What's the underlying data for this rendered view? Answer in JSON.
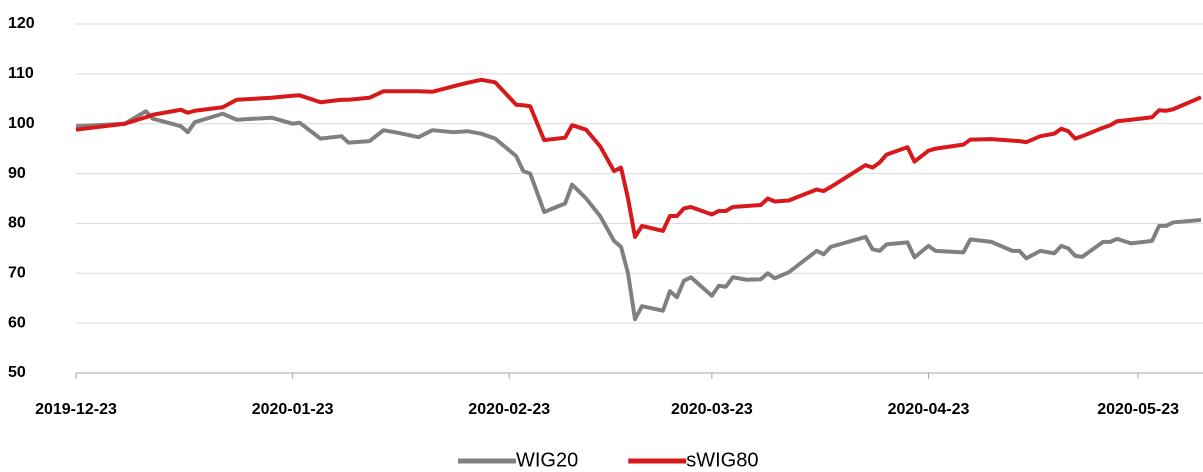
{
  "chart_data": {
    "type": "line",
    "x": [
      "2019-12-23",
      "2019-12-30",
      "2020-01-02",
      "2020-01-03",
      "2020-01-07",
      "2020-01-08",
      "2020-01-09",
      "2020-01-13",
      "2020-01-15",
      "2020-01-20",
      "2020-01-23",
      "2020-01-24",
      "2020-01-27",
      "2020-01-30",
      "2020-01-31",
      "2020-02-03",
      "2020-02-05",
      "2020-02-07",
      "2020-02-10",
      "2020-02-12",
      "2020-02-15",
      "2020-02-17",
      "2020-02-19",
      "2020-02-21",
      "2020-02-24",
      "2020-02-25",
      "2020-02-26",
      "2020-02-28",
      "2020-03-02",
      "2020-03-03",
      "2020-03-05",
      "2020-03-07",
      "2020-03-09",
      "2020-03-10",
      "2020-03-11",
      "2020-03-12",
      "2020-03-13",
      "2020-03-16",
      "2020-03-17",
      "2020-03-18",
      "2020-03-19",
      "2020-03-20",
      "2020-03-23",
      "2020-03-24",
      "2020-03-25",
      "2020-03-26",
      "2020-03-28",
      "2020-03-30",
      "2020-03-31",
      "2020-04-01",
      "2020-04-03",
      "2020-04-07",
      "2020-04-08",
      "2020-04-09",
      "2020-04-14",
      "2020-04-15",
      "2020-04-16",
      "2020-04-17",
      "2020-04-20",
      "2020-04-21",
      "2020-04-23",
      "2020-04-24",
      "2020-04-28",
      "2020-04-29",
      "2020-05-02",
      "2020-05-05",
      "2020-05-06",
      "2020-05-07",
      "2020-05-09",
      "2020-05-11",
      "2020-05-12",
      "2020-05-13",
      "2020-05-14",
      "2020-05-15",
      "2020-05-18",
      "2020-05-19",
      "2020-05-20",
      "2020-05-22",
      "2020-05-25",
      "2020-05-26",
      "2020-05-27",
      "2020-05-28",
      "2020-06-01"
    ],
    "series": [
      {
        "name": "WIG20",
        "color": "#808080",
        "values": [
          99.5,
          100,
          102.5,
          101,
          99.5,
          98.3,
          100.3,
          102,
          100.8,
          101.2,
          100,
          100.2,
          97,
          97.5,
          96.2,
          96.5,
          98.7,
          98.2,
          97.3,
          98.7,
          98.3,
          98.5,
          98,
          97,
          93.5,
          90.5,
          90,
          82.3,
          84,
          87.8,
          85,
          81.5,
          76.5,
          75.3,
          70,
          60.8,
          63.4,
          62.5,
          66.4,
          65.2,
          68.5,
          69.2,
          65.5,
          67.5,
          67.3,
          69.2,
          68.7,
          68.8,
          70,
          69,
          70.2,
          74.5,
          73.8,
          75.3,
          77.3,
          74.8,
          74.5,
          75.8,
          76.2,
          73.2,
          75.5,
          74.5,
          74.2,
          76.8,
          76.3,
          74.5,
          74.5,
          73,
          74.5,
          74,
          75.5,
          75,
          73.5,
          73.3,
          76.3,
          76.3,
          76.9,
          76,
          76.5,
          79.5,
          79.5,
          80.2,
          80.7
        ]
      },
      {
        "name": "sWIG80",
        "color": "#d7191c",
        "values": [
          98.8,
          100,
          101.3,
          101.8,
          102.8,
          102.2,
          102.6,
          103.3,
          104.8,
          105.2,
          105.6,
          105.7,
          104.3,
          104.8,
          104.8,
          105.2,
          106.5,
          106.5,
          106.5,
          106.4,
          107.5,
          108.2,
          108.8,
          108.3,
          103.8,
          103.7,
          103.5,
          96.7,
          97.2,
          99.7,
          98.8,
          95.5,
          90.5,
          91.2,
          85,
          77.3,
          79.5,
          78.5,
          81.5,
          81.5,
          83,
          83.3,
          81.8,
          82.5,
          82.5,
          83.3,
          83.5,
          83.7,
          85,
          84.4,
          84.6,
          86.8,
          86.5,
          87.3,
          91.7,
          91.2,
          92.2,
          93.8,
          95.3,
          92.4,
          94.6,
          95,
          95.8,
          96.8,
          96.9,
          96.6,
          96.5,
          96.3,
          97.5,
          98,
          99,
          98.5,
          97,
          97.5,
          99.2,
          99.7,
          100.5,
          100.8,
          101.3,
          102.7,
          102.6,
          102.9,
          105.3
        ]
      }
    ],
    "xlim": [
      "2019-12-23",
      "2020-06-01"
    ],
    "xticks": [
      "2019-12-23",
      "2020-01-23",
      "2020-02-23",
      "2020-03-23",
      "2020-04-23",
      "2020-05-23"
    ],
    "ylim": [
      50,
      120
    ],
    "yticks": [
      50,
      60,
      70,
      80,
      90,
      100,
      110,
      120
    ],
    "grid": true,
    "legend": "bottom"
  }
}
